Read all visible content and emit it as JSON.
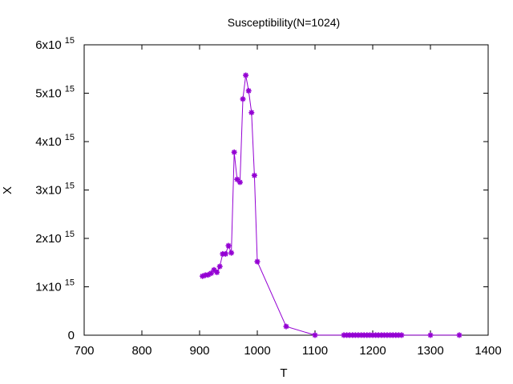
{
  "chart_data": {
    "type": "line",
    "title": "Susceptibility(N=1024)",
    "xlabel": "T",
    "ylabel": "X",
    "xlim": [
      700,
      1400
    ],
    "ylim": [
      0,
      6000000000000000.0
    ],
    "x_ticks": [
      {
        "value": 700,
        "label": "700"
      },
      {
        "value": 800,
        "label": "800"
      },
      {
        "value": 900,
        "label": "900"
      },
      {
        "value": 1000,
        "label": "1000"
      },
      {
        "value": 1100,
        "label": "1100"
      },
      {
        "value": 1200,
        "label": "1200"
      },
      {
        "value": 1300,
        "label": "1300"
      },
      {
        "value": 1400,
        "label": "1400"
      }
    ],
    "y_ticks": [
      {
        "value": 0,
        "mantissa": "0",
        "exponent": ""
      },
      {
        "value": 1000000000000000.0,
        "mantissa": "1x10",
        "exponent": "15"
      },
      {
        "value": 2000000000000000.0,
        "mantissa": "2x10",
        "exponent": "15"
      },
      {
        "value": 3000000000000000.0,
        "mantissa": "3x10",
        "exponent": "15"
      },
      {
        "value": 4000000000000000.0,
        "mantissa": "4x10",
        "exponent": "15"
      },
      {
        "value": 5000000000000000.0,
        "mantissa": "5x10",
        "exponent": "15"
      },
      {
        "value": 6000000000000000.0,
        "mantissa": "6x10",
        "exponent": "15"
      }
    ],
    "grid": false,
    "legend": "none",
    "series": [
      {
        "color": "#9400d3",
        "marker": "asterisk",
        "x": [
          905,
          910,
          915,
          920,
          925,
          930,
          935,
          940,
          945,
          950,
          955,
          960,
          965,
          970,
          975,
          980,
          985,
          990,
          995,
          1000,
          1050,
          1100,
          1150,
          1155,
          1160,
          1165,
          1170,
          1175,
          1180,
          1185,
          1190,
          1195,
          1200,
          1205,
          1210,
          1215,
          1220,
          1225,
          1230,
          1235,
          1240,
          1245,
          1250,
          1300,
          1350
        ],
        "y": [
          1220000000000000.0,
          1240000000000000.0,
          1250000000000000.0,
          1280000000000000.0,
          1350000000000000.0,
          1300000000000000.0,
          1420000000000000.0,
          1680000000000000.0,
          1680000000000000.0,
          1850000000000000.0,
          1700000000000000.0,
          3780000000000000.0,
          3220000000000000.0,
          3160000000000000.0,
          4880000000000000.0,
          5370000000000000.0,
          5050000000000000.0,
          4600000000000000.0,
          3300000000000000.0,
          1520000000000000.0,
          180000000000000.0,
          1000000000000.0,
          1000000000000.0,
          1000000000000.0,
          1000000000000.0,
          1000000000000.0,
          1000000000000.0,
          1000000000000.0,
          1000000000000.0,
          1000000000000.0,
          1000000000000.0,
          1000000000000.0,
          1000000000000.0,
          1000000000000.0,
          1000000000000.0,
          1000000000000.0,
          1000000000000.0,
          1000000000000.0,
          1000000000000.0,
          1000000000000.0,
          1000000000000.0,
          1000000000000.0,
          1000000000000.0,
          1000000000000.0,
          1000000000000.0
        ]
      }
    ]
  }
}
